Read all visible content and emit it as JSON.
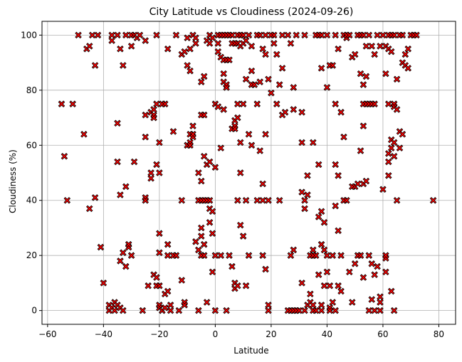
{
  "chart_data": {
    "type": "scatter",
    "title": "City Latitude vs Cloudiness (2024-09-26)",
    "xlabel": "Latitude",
    "ylabel": "Cloudiness (%)",
    "xlim": [
      -62,
      86
    ],
    "ylim": [
      -5,
      105
    ],
    "xticks": [
      -60,
      -40,
      -20,
      0,
      20,
      40,
      60,
      80
    ],
    "yticks": [
      0,
      20,
      40,
      60,
      80,
      100
    ],
    "grid": true,
    "marker": "x-filled",
    "marker_color": "#ff0000",
    "marker_edge_color": "#000000",
    "points": [
      [
        -55,
        75
      ],
      [
        -54,
        56
      ],
      [
        -53,
        40
      ],
      [
        -51,
        75
      ],
      [
        -49,
        100
      ],
      [
        -47,
        64
      ],
      [
        -46,
        95
      ],
      [
        -45,
        37
      ],
      [
        -45,
        96
      ],
      [
        -44,
        100
      ],
      [
        -43,
        89
      ],
      [
        -43,
        41
      ],
      [
        -42,
        100
      ],
      [
        -41,
        23
      ],
      [
        -40,
        10
      ],
      [
        -38,
        0
      ],
      [
        -38,
        2
      ],
      [
        -37,
        1
      ],
      [
        -37,
        100
      ],
      [
        -37,
        98
      ],
      [
        -36,
        3
      ],
      [
        -36,
        0
      ],
      [
        -35,
        2
      ],
      [
        -35,
        100
      ],
      [
        -35,
        68
      ],
      [
        -35,
        54
      ],
      [
        -34,
        95
      ],
      [
        -34,
        42
      ],
      [
        -34,
        18
      ],
      [
        -34,
        1
      ],
      [
        -33,
        89
      ],
      [
        -33,
        21
      ],
      [
        -33,
        0
      ],
      [
        -32,
        100
      ],
      [
        -32,
        45
      ],
      [
        -32,
        16
      ],
      [
        -31,
        23
      ],
      [
        -31,
        24
      ],
      [
        -30,
        20
      ],
      [
        -30,
        96
      ],
      [
        -30,
        100
      ],
      [
        -29,
        54
      ],
      [
        -29,
        100
      ],
      [
        -28,
        99
      ],
      [
        -27,
        100
      ],
      [
        -26,
        0
      ],
      [
        -25,
        71
      ],
      [
        -25,
        41
      ],
      [
        -25,
        40
      ],
      [
        -25,
        63
      ],
      [
        -25,
        98
      ],
      [
        -24,
        9
      ],
      [
        -23,
        72
      ],
      [
        -23,
        48
      ],
      [
        -23,
        50
      ],
      [
        -22,
        73
      ],
      [
        -22,
        71
      ],
      [
        -22,
        13
      ],
      [
        -22,
        70
      ],
      [
        -21,
        100
      ],
      [
        -21,
        75
      ],
      [
        -21,
        12
      ],
      [
        -21,
        9
      ],
      [
        -21,
        53
      ],
      [
        -20,
        28
      ],
      [
        -20,
        9
      ],
      [
        -20,
        21
      ],
      [
        -20,
        61
      ],
      [
        -20,
        50
      ],
      [
        -20,
        2
      ],
      [
        -20,
        1
      ],
      [
        -19,
        0
      ],
      [
        -19,
        75
      ],
      [
        -19,
        0
      ],
      [
        -18,
        75
      ],
      [
        -18,
        6
      ],
      [
        -18,
        1
      ],
      [
        -17,
        95
      ],
      [
        -17,
        7
      ],
      [
        -17,
        24
      ],
      [
        -17,
        20
      ],
      [
        -16,
        0
      ],
      [
        -16,
        2
      ],
      [
        -15,
        20
      ],
      [
        -15,
        65
      ],
      [
        -14,
        100
      ],
      [
        -14,
        20
      ],
      [
        -13,
        0
      ],
      [
        -12,
        93
      ],
      [
        -12,
        40
      ],
      [
        -12,
        11
      ],
      [
        -11,
        94
      ],
      [
        -11,
        3
      ],
      [
        -11,
        2
      ],
      [
        -10,
        99
      ],
      [
        -10,
        89
      ],
      [
        -10,
        60
      ],
      [
        -10,
        60
      ],
      [
        -9,
        61
      ],
      [
        -9,
        64
      ],
      [
        -9,
        95
      ],
      [
        -9,
        87
      ],
      [
        -9,
        60
      ],
      [
        -8,
        100
      ],
      [
        -8,
        63
      ],
      [
        -8,
        67
      ],
      [
        -8,
        64
      ],
      [
        -7,
        25
      ],
      [
        -7,
        99
      ],
      [
        -7,
        97
      ],
      [
        -6,
        0
      ],
      [
        -6,
        22
      ],
      [
        -6,
        50
      ],
      [
        -6,
        40
      ],
      [
        -5,
        27
      ],
      [
        -5,
        20
      ],
      [
        -5,
        83
      ],
      [
        -5,
        71
      ],
      [
        -5,
        30
      ],
      [
        -5,
        47
      ],
      [
        -5,
        40
      ],
      [
        -4,
        71
      ],
      [
        -4,
        85
      ],
      [
        -4,
        56
      ],
      [
        -4,
        40
      ],
      [
        -4,
        24
      ],
      [
        -4,
        20
      ],
      [
        -3,
        98
      ],
      [
        -3,
        53
      ],
      [
        -3,
        40
      ],
      [
        -3,
        3
      ],
      [
        -2,
        100
      ],
      [
        -2,
        97
      ],
      [
        -2,
        54
      ],
      [
        -2,
        40
      ],
      [
        -2,
        32
      ],
      [
        -2,
        37
      ],
      [
        -1,
        36
      ],
      [
        -1,
        99
      ],
      [
        -1,
        28
      ],
      [
        -1,
        14
      ],
      [
        0,
        75
      ],
      [
        0,
        0
      ],
      [
        0,
        20
      ],
      [
        0,
        52
      ],
      [
        1,
        100
      ],
      [
        1,
        94
      ],
      [
        1,
        74
      ],
      [
        1,
        97
      ],
      [
        2,
        59
      ],
      [
        2,
        100
      ],
      [
        2,
        92
      ],
      [
        2,
        20
      ],
      [
        3,
        91
      ],
      [
        3,
        86
      ],
      [
        3,
        83
      ],
      [
        3,
        73
      ],
      [
        3,
        100
      ],
      [
        4,
        82
      ],
      [
        4,
        81
      ],
      [
        4,
        100
      ],
      [
        4,
        91
      ],
      [
        4,
        0
      ],
      [
        5,
        100
      ],
      [
        5,
        91
      ],
      [
        5,
        20
      ],
      [
        6,
        97
      ],
      [
        6,
        66
      ],
      [
        6,
        16
      ],
      [
        6,
        100
      ],
      [
        7,
        67
      ],
      [
        7,
        10
      ],
      [
        7,
        8
      ],
      [
        7,
        97
      ],
      [
        7,
        69
      ],
      [
        7,
        66
      ],
      [
        8,
        70
      ],
      [
        8,
        9
      ],
      [
        8,
        100
      ],
      [
        8,
        97
      ],
      [
        8,
        40
      ],
      [
        8,
        75
      ],
      [
        9,
        96
      ],
      [
        9,
        50
      ],
      [
        9,
        31
      ],
      [
        9,
        61
      ],
      [
        9,
        100
      ],
      [
        10,
        97
      ],
      [
        10,
        27
      ],
      [
        10,
        100
      ],
      [
        10,
        75
      ],
      [
        11,
        9
      ],
      [
        11,
        84
      ],
      [
        11,
        40
      ],
      [
        11,
        98
      ],
      [
        12,
        64
      ],
      [
        12,
        20
      ],
      [
        12,
        100
      ],
      [
        13,
        87
      ],
      [
        13,
        82
      ],
      [
        13,
        60
      ],
      [
        13,
        96
      ],
      [
        14,
        82
      ],
      [
        15,
        100
      ],
      [
        15,
        40
      ],
      [
        15,
        75
      ],
      [
        16,
        83
      ],
      [
        16,
        58
      ],
      [
        16,
        100
      ],
      [
        17,
        95
      ],
      [
        17,
        46
      ],
      [
        17,
        40
      ],
      [
        17,
        20
      ],
      [
        18,
        15
      ],
      [
        18,
        100
      ],
      [
        18,
        93
      ],
      [
        18,
        64
      ],
      [
        19,
        84
      ],
      [
        19,
        2
      ],
      [
        19,
        40
      ],
      [
        19,
        0
      ],
      [
        20,
        79
      ],
      [
        20,
        100
      ],
      [
        21,
        97
      ],
      [
        21,
        100
      ],
      [
        22,
        75
      ],
      [
        22,
        93
      ],
      [
        23,
        40
      ],
      [
        23,
        82
      ],
      [
        24,
        100
      ],
      [
        24,
        88
      ],
      [
        24,
        71
      ],
      [
        25,
        72
      ],
      [
        26,
        100
      ],
      [
        26,
        0
      ],
      [
        27,
        20
      ],
      [
        27,
        97
      ],
      [
        27,
        0
      ],
      [
        28,
        22
      ],
      [
        28,
        73
      ],
      [
        28,
        81
      ],
      [
        28,
        0
      ],
      [
        29,
        0
      ],
      [
        29,
        100
      ],
      [
        30,
        0
      ],
      [
        31,
        61
      ],
      [
        31,
        72
      ],
      [
        31,
        43
      ],
      [
        31,
        10
      ],
      [
        32,
        0
      ],
      [
        32,
        37
      ],
      [
        32,
        40
      ],
      [
        32,
        100
      ],
      [
        33,
        42
      ],
      [
        33,
        49
      ],
      [
        33,
        2
      ],
      [
        34,
        20
      ],
      [
        34,
        6
      ],
      [
        34,
        3
      ],
      [
        35,
        61
      ],
      [
        35,
        22
      ],
      [
        35,
        20
      ],
      [
        35,
        0
      ],
      [
        35,
        2
      ],
      [
        36,
        100
      ],
      [
        36,
        20
      ],
      [
        36,
        0
      ],
      [
        37,
        53
      ],
      [
        37,
        13
      ],
      [
        37,
        34
      ],
      [
        37,
        100
      ],
      [
        38,
        88
      ],
      [
        38,
        36
      ],
      [
        38,
        24
      ],
      [
        38,
        2
      ],
      [
        38,
        100
      ],
      [
        38,
        0
      ],
      [
        39,
        22
      ],
      [
        39,
        32
      ],
      [
        39,
        9
      ],
      [
        40,
        20
      ],
      [
        40,
        14
      ],
      [
        40,
        100
      ],
      [
        40,
        81
      ],
      [
        41,
        89
      ],
      [
        41,
        9
      ],
      [
        41,
        1
      ],
      [
        41,
        0
      ],
      [
        42,
        89
      ],
      [
        42,
        20
      ],
      [
        42,
        3
      ],
      [
        43,
        100
      ],
      [
        43,
        75
      ],
      [
        43,
        53
      ],
      [
        43,
        38
      ],
      [
        43,
        0
      ],
      [
        44,
        49
      ],
      [
        44,
        29
      ],
      [
        44,
        95
      ],
      [
        44,
        9
      ],
      [
        45,
        72
      ],
      [
        45,
        20
      ],
      [
        45,
        7
      ],
      [
        46,
        40
      ],
      [
        46,
        63
      ],
      [
        46,
        100
      ],
      [
        47,
        99
      ],
      [
        47,
        100
      ],
      [
        47,
        40
      ],
      [
        48,
        100
      ],
      [
        48,
        14
      ],
      [
        49,
        45
      ],
      [
        49,
        92
      ],
      [
        49,
        3
      ],
      [
        50,
        45
      ],
      [
        50,
        93
      ],
      [
        50,
        17
      ],
      [
        51,
        100
      ],
      [
        51,
        20
      ],
      [
        51,
        46
      ],
      [
        52,
        100
      ],
      [
        52,
        58
      ],
      [
        52,
        86
      ],
      [
        52,
        20
      ],
      [
        53,
        100
      ],
      [
        53,
        82
      ],
      [
        53,
        67
      ],
      [
        53,
        75
      ],
      [
        53,
        46
      ],
      [
        53,
        12
      ],
      [
        54,
        75
      ],
      [
        54,
        96
      ],
      [
        54,
        85
      ],
      [
        54,
        47
      ],
      [
        55,
        75
      ],
      [
        55,
        100
      ],
      [
        55,
        20
      ],
      [
        55,
        0
      ],
      [
        56,
        96
      ],
      [
        56,
        75
      ],
      [
        56,
        17
      ],
      [
        56,
        4
      ],
      [
        57,
        93
      ],
      [
        57,
        75
      ],
      [
        57,
        0
      ],
      [
        57,
        13
      ],
      [
        58,
        16
      ],
      [
        58,
        100
      ],
      [
        59,
        96
      ],
      [
        59,
        0
      ],
      [
        59,
        5
      ],
      [
        59,
        3
      ],
      [
        60,
        44
      ],
      [
        60,
        100
      ],
      [
        61,
        96
      ],
      [
        61,
        86
      ],
      [
        61,
        19
      ],
      [
        61,
        20
      ],
      [
        61,
        14
      ],
      [
        62,
        95
      ],
      [
        62,
        100
      ],
      [
        62,
        75
      ],
      [
        62,
        49
      ],
      [
        62,
        54
      ],
      [
        62,
        57
      ],
      [
        63,
        94
      ],
      [
        63,
        100
      ],
      [
        63,
        59
      ],
      [
        63,
        7
      ],
      [
        63,
        62
      ],
      [
        64,
        100
      ],
      [
        64,
        61
      ],
      [
        64,
        75
      ],
      [
        64,
        74
      ],
      [
        64,
        56
      ],
      [
        64,
        0
      ],
      [
        65,
        73
      ],
      [
        65,
        84
      ],
      [
        65,
        40
      ],
      [
        66,
        100
      ],
      [
        66,
        65
      ],
      [
        66,
        59
      ],
      [
        67,
        100
      ],
      [
        67,
        64
      ],
      [
        67,
        90
      ],
      [
        68,
        89
      ],
      [
        68,
        93
      ],
      [
        69,
        95
      ],
      [
        69,
        88
      ],
      [
        70,
        100
      ],
      [
        71,
        100
      ],
      [
        72,
        100
      ],
      [
        78,
        40
      ]
    ]
  }
}
